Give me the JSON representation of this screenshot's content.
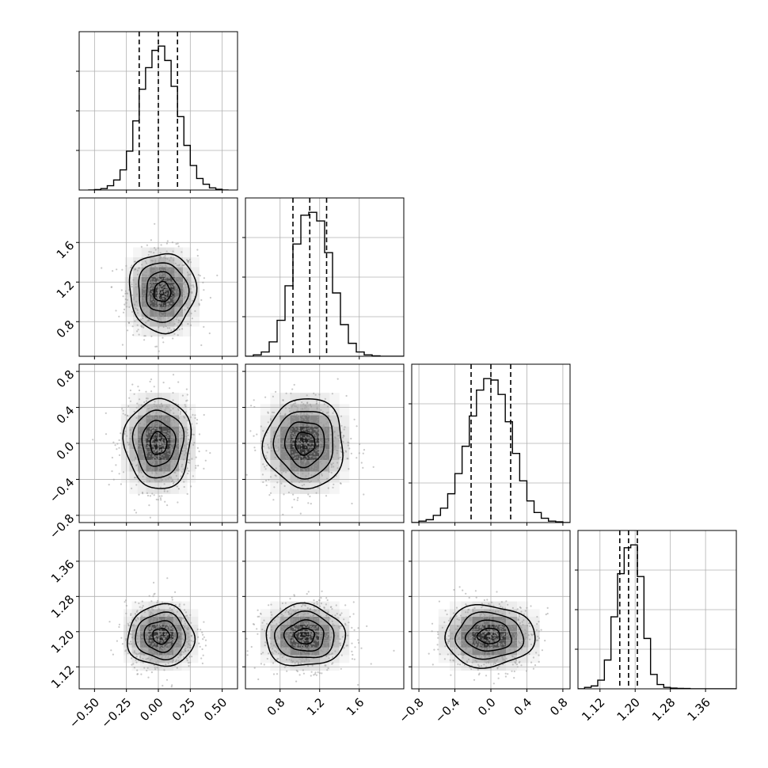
{
  "chart_data": {
    "type": "corner",
    "grid": true,
    "params": [
      {
        "lim": [
          -0.62,
          0.62
        ],
        "ticks": [
          "−0.50",
          "−0.25",
          "0.00",
          "0.25",
          "0.50"
        ],
        "tick_values": [
          -0.5,
          -0.25,
          0.0,
          0.25,
          0.5
        ],
        "quantiles": [
          -0.15,
          0.0,
          0.15
        ],
        "hist_bins": [
          -0.55,
          -0.5,
          -0.45,
          -0.4,
          -0.35,
          -0.3,
          -0.25,
          -0.2,
          -0.15,
          -0.1,
          -0.05,
          0.0,
          0.05,
          0.1,
          0.15,
          0.2,
          0.25,
          0.3,
          0.35,
          0.4,
          0.45,
          0.5,
          0.55
        ],
        "hist_counts": [
          0,
          0.3,
          1,
          3,
          7,
          14,
          27,
          48,
          70,
          85,
          97,
          100,
          90,
          72,
          51,
          31,
          17,
          8,
          4,
          1.5,
          0.5,
          0
        ]
      },
      {
        "lim": [
          0.45,
          2.05
        ],
        "ticks": [
          "0.8",
          "1.2",
          "1.6"
        ],
        "tick_values": [
          0.8,
          1.2,
          1.6
        ],
        "quantiles": [
          0.93,
          1.1,
          1.27
        ],
        "hist_bins": [
          0.45,
          0.53,
          0.61,
          0.69,
          0.77,
          0.85,
          0.93,
          1.01,
          1.09,
          1.17,
          1.25,
          1.33,
          1.41,
          1.49,
          1.57,
          1.65,
          1.73,
          1.81,
          1.89,
          1.97,
          2.05
        ],
        "hist_counts": [
          0,
          1,
          3,
          10,
          25,
          49,
          78,
          98,
          100,
          94,
          72,
          44,
          22,
          9,
          3,
          1,
          0.3,
          0,
          0,
          0
        ]
      },
      {
        "lim": [
          -0.88,
          0.88
        ],
        "ticks": [
          "−0.8",
          "−0.4",
          "0.0",
          "0.4",
          "0.8"
        ],
        "tick_values": [
          -0.8,
          -0.4,
          0.0,
          0.4,
          0.8
        ],
        "quantiles": [
          -0.22,
          0.0,
          0.22
        ],
        "hist_bins": [
          -0.88,
          -0.8,
          -0.72,
          -0.64,
          -0.56,
          -0.48,
          -0.4,
          -0.32,
          -0.24,
          -0.16,
          -0.08,
          0.0,
          0.08,
          0.16,
          0.24,
          0.32,
          0.4,
          0.48,
          0.56,
          0.64,
          0.72,
          0.8,
          0.88
        ],
        "hist_counts": [
          0,
          1,
          2,
          5,
          10,
          20,
          34,
          53,
          74,
          92,
          100,
          99,
          89,
          70,
          48,
          29,
          15,
          7,
          3,
          1,
          0.5,
          0
        ]
      },
      {
        "lim": [
          1.07,
          1.43
        ],
        "ticks": [
          "1.12",
          "1.20",
          "1.28",
          "1.36"
        ],
        "tick_values": [
          1.12,
          1.2,
          1.28,
          1.36
        ],
        "quantiles": [
          1.165,
          1.185,
          1.205
        ],
        "hist_bins": [
          1.07,
          1.085,
          1.1,
          1.115,
          1.13,
          1.145,
          1.16,
          1.175,
          1.19,
          1.205,
          1.22,
          1.235,
          1.25,
          1.265,
          1.28,
          1.295,
          1.31,
          1.325,
          1.34,
          1.355,
          1.37,
          1.385,
          1.4,
          1.415,
          1.43
        ],
        "hist_counts": [
          0,
          1,
          2,
          6,
          20,
          50,
          80,
          98,
          100,
          78,
          35,
          10,
          3,
          1,
          0.5,
          0.3,
          0.2,
          0,
          0,
          0,
          0,
          0,
          0,
          0
        ]
      }
    ],
    "scatter": [
      {
        "row": 1,
        "col": 0,
        "mean": [
          0.03,
          1.1
        ],
        "sd": [
          0.13,
          0.2
        ]
      },
      {
        "row": 2,
        "col": 0,
        "mean": [
          0.0,
          0.0
        ],
        "sd": [
          0.13,
          0.25
        ]
      },
      {
        "row": 2,
        "col": 1,
        "mean": [
          1.05,
          0.0
        ],
        "sd": [
          0.2,
          0.25
        ]
      },
      {
        "row": 3,
        "col": 0,
        "mean": [
          0.02,
          1.19
        ],
        "sd": [
          0.13,
          0.035
        ]
      },
      {
        "row": 3,
        "col": 1,
        "mean": [
          1.05,
          1.19
        ],
        "sd": [
          0.2,
          0.035
        ]
      },
      {
        "row": 3,
        "col": 2,
        "mean": [
          -0.02,
          1.19
        ],
        "sd": [
          0.25,
          0.035
        ]
      }
    ]
  }
}
